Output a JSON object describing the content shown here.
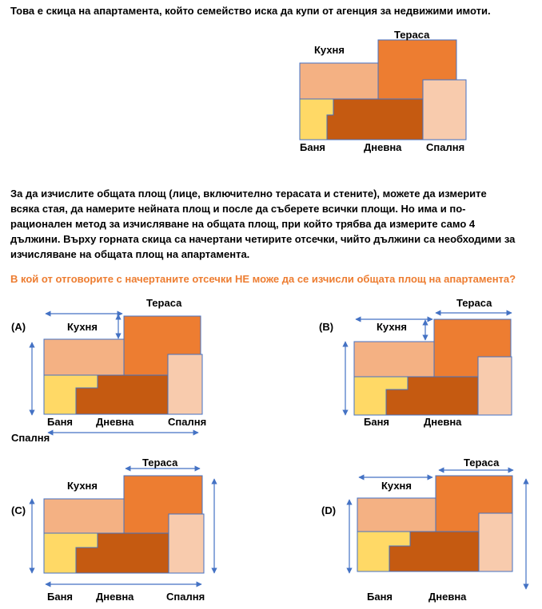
{
  "intro": "Това е скица на апартамента, който семейство иска да купи от агенция за недвижими имоти.",
  "paragraph_lines": [
    "За да изчислите общата площ (лице, включително терасата и стените), можете да измерите",
    "всяка стая, да намерите нейната площ и после да съберете всички площи. Но има и по-",
    "рационален метод за изчисляване на общата площ, при който трябва да измерите само 4",
    "дължини. Върху горната скица са начертани четирите отсечки, чийто дължини са необходими за",
    "изчисляване на общата площ на апартамента."
  ],
  "question": "В кой от отговорите с начертаните отсечки НЕ може да се изчисли общата площ на апартамента?",
  "rooms": {
    "terrace": "Тераса",
    "kitchen": "Кухня",
    "bathroom": "Баня",
    "living": "Дневна",
    "bedroom": "Спалня"
  },
  "options": {
    "a": "(A)",
    "b": "(B)",
    "c": "(C)",
    "d": "(D)"
  },
  "colors": {
    "terrace": "#ED7D31",
    "kitchen": "#F4B183",
    "bathroom": "#FFD966",
    "living": "#C55A11",
    "bedroom": "#F8CBAD",
    "outline": "#4472C4",
    "question": "#ED7D31"
  }
}
